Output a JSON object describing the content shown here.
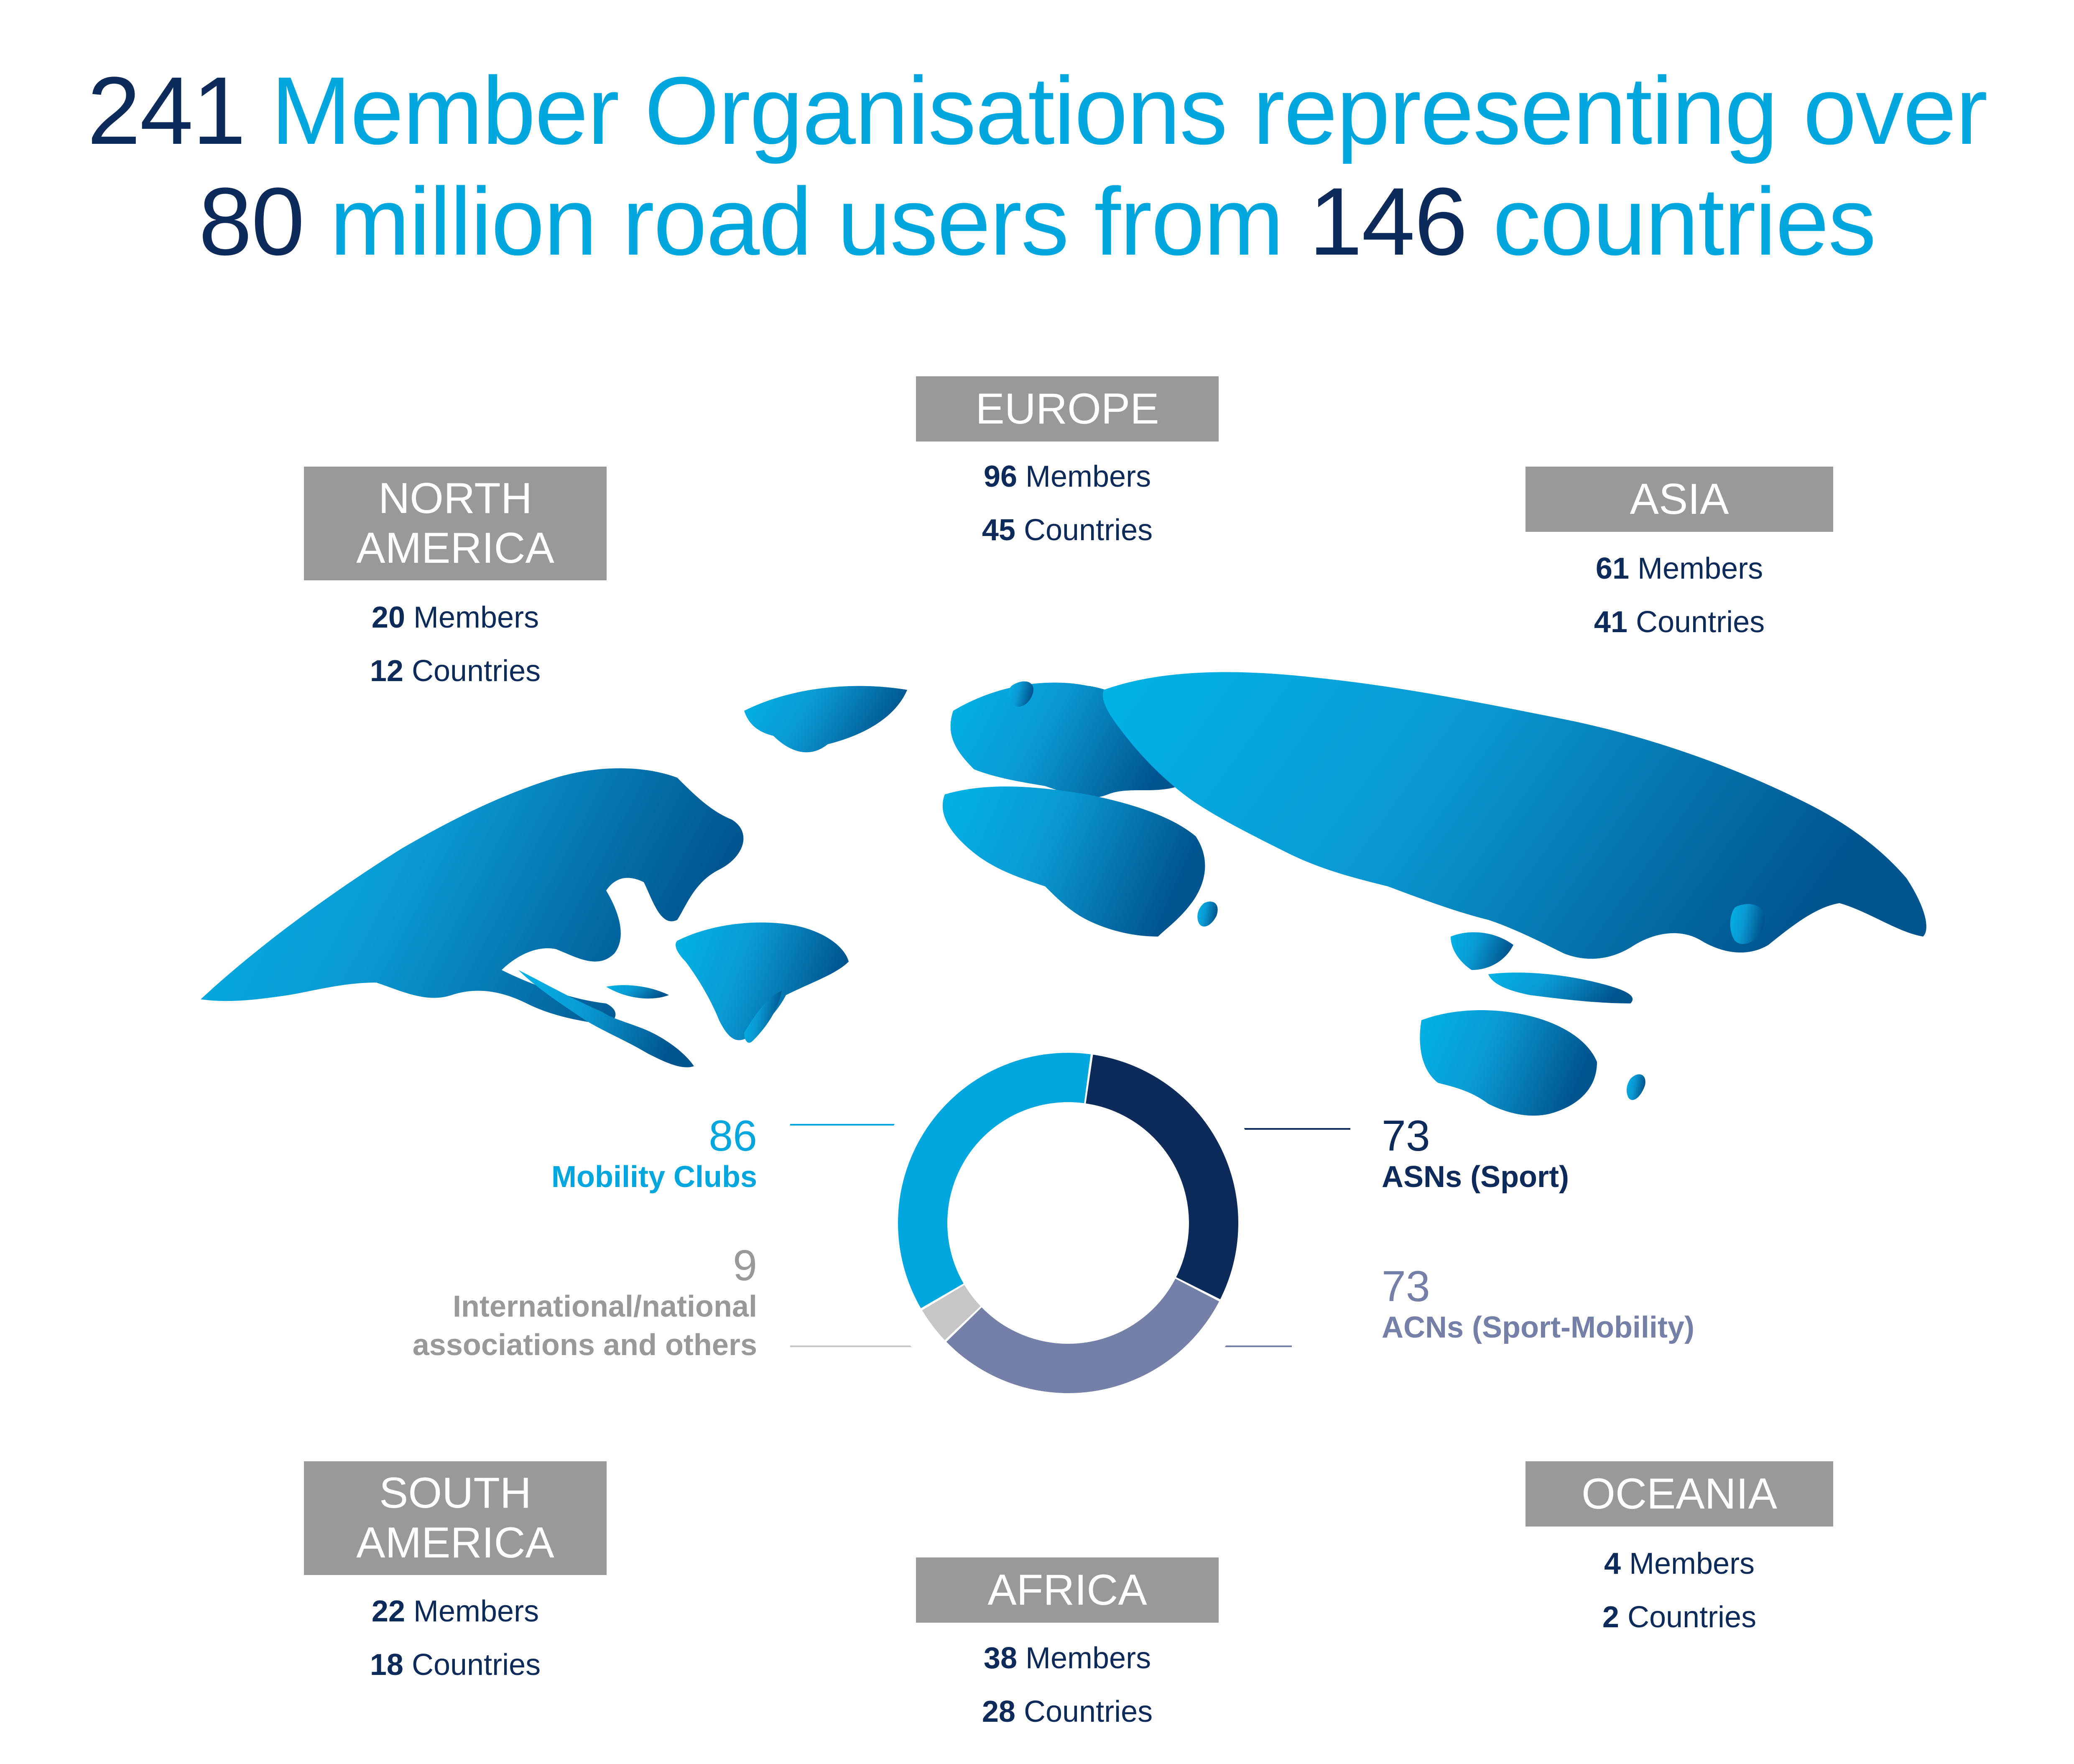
{
  "headline": {
    "line1": {
      "number": "241",
      "text": "Member Organisations representing over"
    },
    "line2": {
      "number1": "80",
      "text1": "million road users from",
      "number2": "146",
      "text2": "countries"
    }
  },
  "regions": [
    {
      "key": "europe",
      "name": "EUROPE",
      "members": "96",
      "members_label": "Members",
      "countries": "45",
      "countries_label": "Countries"
    },
    {
      "key": "north_america",
      "name_line1": "NORTH",
      "name_line2": "AMERICA",
      "members": "20",
      "members_label": "Members",
      "countries": "12",
      "countries_label": "Countries"
    },
    {
      "key": "asia",
      "name": "ASIA",
      "members": "61",
      "members_label": "Members",
      "countries": "41",
      "countries_label": "Countries"
    },
    {
      "key": "south_america",
      "name_line1": "SOUTH",
      "name_line2": "AMERICA",
      "members": "22",
      "members_label": "Members",
      "countries": "18",
      "countries_label": "Countries"
    },
    {
      "key": "africa",
      "name": "AFRICA",
      "members": "38",
      "members_label": "Members",
      "countries": "28",
      "countries_label": "Countries"
    },
    {
      "key": "oceania",
      "name": "OCEANIA",
      "members": "4",
      "members_label": "Members",
      "countries": "2",
      "countries_label": "Countries"
    }
  ],
  "member_types": [
    {
      "key": "mobility",
      "value": 86,
      "label": "Mobility Clubs",
      "color": "#00a7df"
    },
    {
      "key": "asn",
      "value": 73,
      "label": "ASNs (Sport)",
      "color": "#0d2b5a"
    },
    {
      "key": "acn",
      "value": 73,
      "label": "ACNs (Sport-Mobility)",
      "color": "#7580a8"
    },
    {
      "key": "intl",
      "value": 9,
      "label_line1": "International/national",
      "label_line2": "associations and others",
      "color": "#c6c6c6"
    }
  ],
  "colors": {
    "dark_navy": "#0d2b5a",
    "cyan": "#00a7df",
    "region_box_gray": "#999999",
    "map_light": "#00aee0",
    "map_dark": "#005a94"
  }
}
